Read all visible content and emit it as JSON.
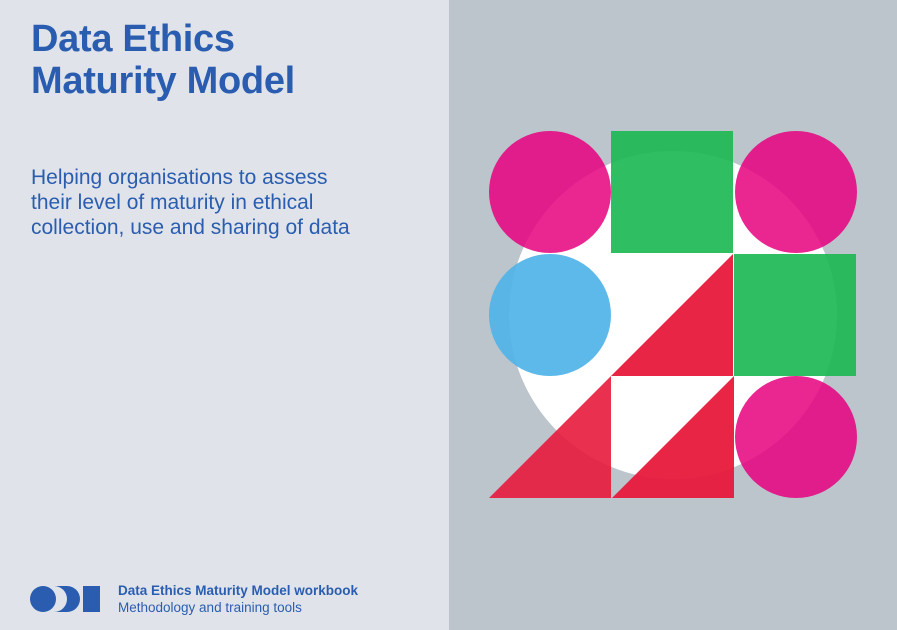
{
  "cover": {
    "title_lines": [
      "Data Ethics",
      "Maturity Model"
    ],
    "subtitle_lines": [
      "Helping organisations to assess",
      "their level of maturity in ethical",
      "collection, use and sharing of data"
    ]
  },
  "footer": {
    "logo": "odi-logo",
    "title": "Data Ethics Maturity Model workbook",
    "subtitle": "Methodology and training tools"
  },
  "colors": {
    "title_blue": "#2a5db0",
    "left_background": "#e0e4ea",
    "right_background": "#bcc4cc",
    "magenta": "#e6007e",
    "green": "#1db954",
    "light_blue": "#4fb3e8",
    "red": "#e8193c"
  }
}
